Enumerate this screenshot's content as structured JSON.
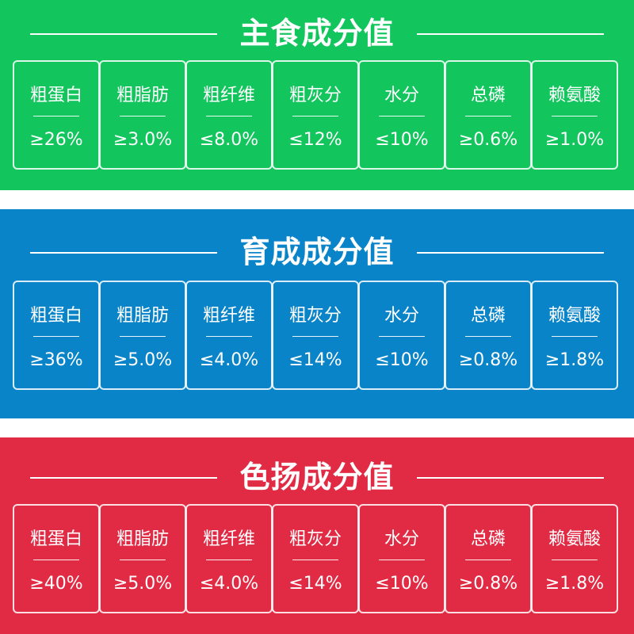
{
  "panels": [
    {
      "title": "主食成分值",
      "color": "#12c55d",
      "items": [
        {
          "label": "粗蛋白",
          "value": "≥26%"
        },
        {
          "label": "粗脂肪",
          "value": "≥3.0%"
        },
        {
          "label": "粗纤维",
          "value": "≤8.0%"
        },
        {
          "label": "粗灰分",
          "value": "≤12%"
        },
        {
          "label": "水分",
          "value": "≤10%"
        },
        {
          "label": "总磷",
          "value": "≥0.6%"
        },
        {
          "label": "赖氨酸",
          "value": "≥1.0%"
        }
      ]
    },
    {
      "title": "育成成分值",
      "color": "#0a84c8",
      "items": [
        {
          "label": "粗蛋白",
          "value": "≥36%"
        },
        {
          "label": "粗脂肪",
          "value": "≥5.0%"
        },
        {
          "label": "粗纤维",
          "value": "≤4.0%"
        },
        {
          "label": "粗灰分",
          "value": "≤14%"
        },
        {
          "label": "水分",
          "value": "≤10%"
        },
        {
          "label": "总磷",
          "value": "≥0.8%"
        },
        {
          "label": "赖氨酸",
          "value": "≥1.8%"
        }
      ]
    },
    {
      "title": "色扬成分值",
      "color": "#e12b45",
      "items": [
        {
          "label": "粗蛋白",
          "value": "≥40%"
        },
        {
          "label": "粗脂肪",
          "value": "≥5.0%"
        },
        {
          "label": "粗纤维",
          "value": "≤4.0%"
        },
        {
          "label": "粗灰分",
          "value": "≤14%"
        },
        {
          "label": "水分",
          "value": "≤10%"
        },
        {
          "label": "总磷",
          "value": "≥0.8%"
        },
        {
          "label": "赖氨酸",
          "value": "≥1.8%"
        }
      ]
    }
  ]
}
